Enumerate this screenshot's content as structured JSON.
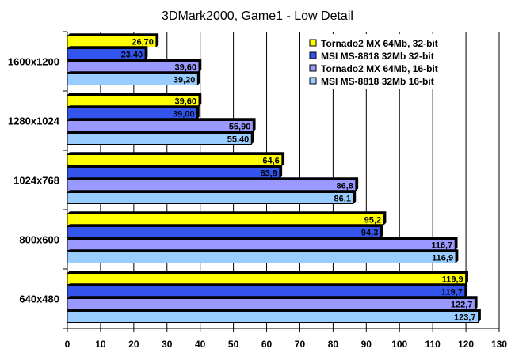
{
  "chart_data": {
    "type": "bar",
    "orientation": "horizontal",
    "title": "3DMark2000, Game1 - Low Detail",
    "xlabel": "",
    "ylabel": "",
    "xlim": [
      0,
      130
    ],
    "x_ticks": [
      "0",
      "10",
      "20",
      "30",
      "40",
      "50",
      "60",
      "70",
      "80",
      "90",
      "100",
      "110",
      "120",
      "130"
    ],
    "grid": true,
    "legend_position": "top-right",
    "categories": [
      "1600x1200",
      "1280x1024",
      "1024x768",
      "800x600",
      "640x480"
    ],
    "series": [
      {
        "name": "Tornado2 MX 64Mb, 32-bit",
        "color": "#ffff00",
        "values": [
          26.7,
          39.6,
          64.6,
          95.2,
          119.9
        ],
        "labels": [
          "26,70",
          "39,60",
          "64,6",
          "95,2",
          "119,9"
        ]
      },
      {
        "name": "MSI MS-8818 32Mb 32-bit",
        "color": "#3355ee",
        "values": [
          23.4,
          39.0,
          63.9,
          94.3,
          119.7
        ],
        "labels": [
          "23,40",
          "39,00",
          "63,9",
          "94,3",
          "119,7"
        ]
      },
      {
        "name": "Tornado2 MX 64Mb, 16-bit",
        "color": "#9999ff",
        "values": [
          39.6,
          55.9,
          86.8,
          116.7,
          122.7
        ],
        "labels": [
          "39,60",
          "55,90",
          "86,8",
          "116,7",
          "122,7"
        ]
      },
      {
        "name": "MSI MS-8818 32Mb 16-bit",
        "color": "#99ccff",
        "values": [
          39.2,
          55.4,
          86.1,
          116.9,
          123.7
        ],
        "labels": [
          "39,20",
          "55,40",
          "86,1",
          "116,9",
          "123,7"
        ]
      }
    ]
  }
}
